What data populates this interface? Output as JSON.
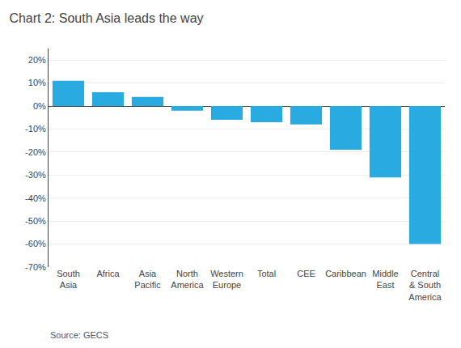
{
  "chart_data": {
    "type": "bar",
    "title": "Chart 2: South Asia leads the way",
    "categories": [
      "South\nAsia",
      "Africa",
      "Asia\nPacific",
      "North\nAmerica",
      "Western\nEurope",
      "Total",
      "CEE",
      "Caribbean",
      "Middle\nEast",
      "Central\n& South\nAmerica"
    ],
    "values": [
      11,
      6,
      4,
      -2,
      -6,
      -7,
      -8,
      -19,
      -31,
      -60
    ],
    "color": "#29abe2",
    "ylim": [
      -70,
      25
    ],
    "yticks": [
      {
        "value": -70,
        "label": "-70%"
      },
      {
        "value": -60,
        "label": "-60%"
      },
      {
        "value": -50,
        "label": "-50%"
      },
      {
        "value": -40,
        "label": "-40%"
      },
      {
        "value": -30,
        "label": "-30%"
      },
      {
        "value": -20,
        "label": "-20%"
      },
      {
        "value": -10,
        "label": "-10%"
      },
      {
        "value": 0,
        "label": "0%"
      },
      {
        "value": 10,
        "label": "10%"
      },
      {
        "value": 20,
        "label": "20%"
      }
    ],
    "grid": true,
    "annotations": [
      "Source: GECS"
    ]
  }
}
